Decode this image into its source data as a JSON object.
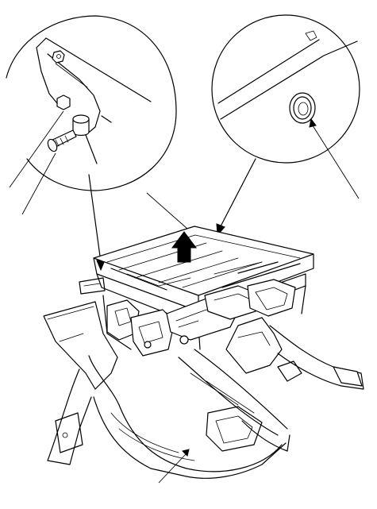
{
  "figure": {
    "type": "technical-exploded-diagram",
    "background": "#ffffff",
    "ink": "#000000",
    "callouts": [
      {
        "id": "detail-left",
        "depicts": "bolt-and-pin-bracket-detail"
      },
      {
        "id": "detail-right",
        "depicts": "grommet-clip-detail"
      }
    ],
    "leader_count": 6,
    "arrows": [
      {
        "id": "lift-arrow",
        "meaning": "remove-upward"
      }
    ]
  }
}
